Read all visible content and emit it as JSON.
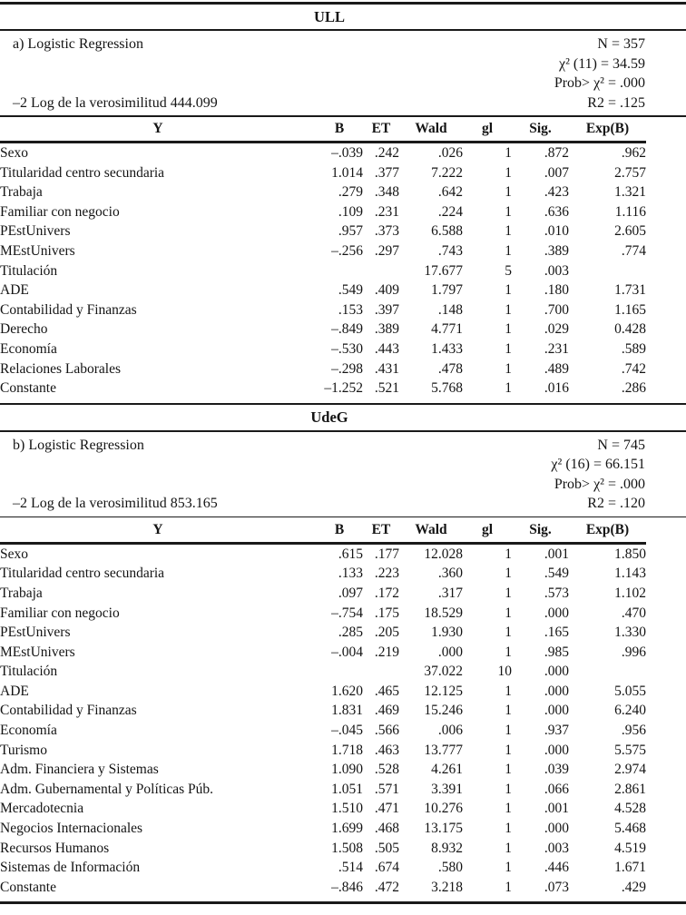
{
  "document": {
    "background": "#ffffff",
    "text_color": "#141414",
    "columns": [
      "Y",
      "B",
      "ET",
      "Wald",
      "gl",
      "Sig.",
      "Exp(B)"
    ],
    "sections": [
      {
        "university": "ULL",
        "model_label": "a) Logistic Regression",
        "loglik_label": "–2 Log de la verosimilitud 444.099",
        "stats": [
          "N = 357",
          "χ² (11) = 34.59",
          "Prob> χ² = .000",
          "R2 = .125"
        ],
        "rows": [
          [
            "Sexo",
            "–.039",
            ".242",
            ".026",
            "1",
            ".872",
            ".962"
          ],
          [
            "Titularidad centro secundaria",
            "1.014",
            ".377",
            "7.222",
            "1",
            ".007",
            "2.757"
          ],
          [
            "Trabaja",
            ".279",
            ".348",
            ".642",
            "1",
            ".423",
            "1.321"
          ],
          [
            "Familiar con negocio",
            ".109",
            ".231",
            ".224",
            "1",
            ".636",
            "1.116"
          ],
          [
            "PEstUnivers",
            ".957",
            ".373",
            "6.588",
            "1",
            ".010",
            "2.605"
          ],
          [
            "MEstUnivers",
            "–.256",
            ".297",
            ".743",
            "1",
            ".389",
            ".774"
          ],
          [
            "Titulación",
            "",
            "",
            "17.677",
            "5",
            ".003",
            ""
          ],
          [
            "ADE",
            ".549",
            ".409",
            "1.797",
            "1",
            ".180",
            "1.731"
          ],
          [
            "Contabilidad y Finanzas",
            ".153",
            ".397",
            ".148",
            "1",
            ".700",
            "1.165"
          ],
          [
            "Derecho",
            "–.849",
            ".389",
            "4.771",
            "1",
            ".029",
            "0.428"
          ],
          [
            "Economía",
            "–.530",
            ".443",
            "1.433",
            "1",
            ".231",
            ".589"
          ],
          [
            "Relaciones Laborales",
            "–.298",
            ".431",
            ".478",
            "1",
            ".489",
            ".742"
          ],
          [
            "Constante",
            "–1.252",
            ".521",
            "5.768",
            "1",
            ".016",
            ".286"
          ]
        ]
      },
      {
        "university": "UdeG",
        "model_label": "b) Logistic Regression",
        "loglik_label": "–2 Log de la verosimilitud 853.165",
        "stats": [
          "N = 745",
          "χ² (16) = 66.151",
          "Prob> χ² = .000",
          "R2 = .120"
        ],
        "rows": [
          [
            "Sexo",
            ".615",
            ".177",
            "12.028",
            "1",
            ".001",
            "1.850"
          ],
          [
            "Titularidad centro secundaria",
            ".133",
            ".223",
            ".360",
            "1",
            ".549",
            "1.143"
          ],
          [
            "Trabaja",
            ".097",
            ".172",
            ".317",
            "1",
            ".573",
            "1.102"
          ],
          [
            "Familiar con negocio",
            "–.754",
            ".175",
            "18.529",
            "1",
            ".000",
            ".470"
          ],
          [
            "PEstUnivers",
            ".285",
            ".205",
            "1.930",
            "1",
            ".165",
            "1.330"
          ],
          [
            "MEstUnivers",
            "–.004",
            ".219",
            ".000",
            "1",
            ".985",
            ".996"
          ],
          [
            "Titulación",
            "",
            "",
            "37.022",
            "10",
            ".000",
            ""
          ],
          [
            "ADE",
            "1.620",
            ".465",
            "12.125",
            "1",
            ".000",
            "5.055"
          ],
          [
            "Contabilidad y Finanzas",
            "1.831",
            ".469",
            "15.246",
            "1",
            ".000",
            "6.240"
          ],
          [
            "Economía",
            "–.045",
            ".566",
            ".006",
            "1",
            ".937",
            ".956"
          ],
          [
            "Turismo",
            "1.718",
            ".463",
            "13.777",
            "1",
            ".000",
            "5.575"
          ],
          [
            "Adm. Financiera y Sistemas",
            "1.090",
            ".528",
            "4.261",
            "1",
            ".039",
            "2.974"
          ],
          [
            "Adm. Gubernamental y Políticas Púb.",
            "1.051",
            ".571",
            "3.391",
            "1",
            ".066",
            "2.861"
          ],
          [
            "Mercadotecnia",
            "1.510",
            ".471",
            "10.276",
            "1",
            ".001",
            "4.528"
          ],
          [
            "Negocios Internacionales",
            "1.699",
            ".468",
            "13.175",
            "1",
            ".000",
            "5.468"
          ],
          [
            "Recursos Humanos",
            "1.508",
            ".505",
            "8.932",
            "1",
            ".003",
            "4.519"
          ],
          [
            "Sistemas de Información",
            ".514",
            ".674",
            ".580",
            "1",
            ".446",
            "1.671"
          ],
          [
            "Constante",
            "–.846",
            ".472",
            "3.218",
            "1",
            ".073",
            ".429"
          ]
        ]
      }
    ]
  }
}
